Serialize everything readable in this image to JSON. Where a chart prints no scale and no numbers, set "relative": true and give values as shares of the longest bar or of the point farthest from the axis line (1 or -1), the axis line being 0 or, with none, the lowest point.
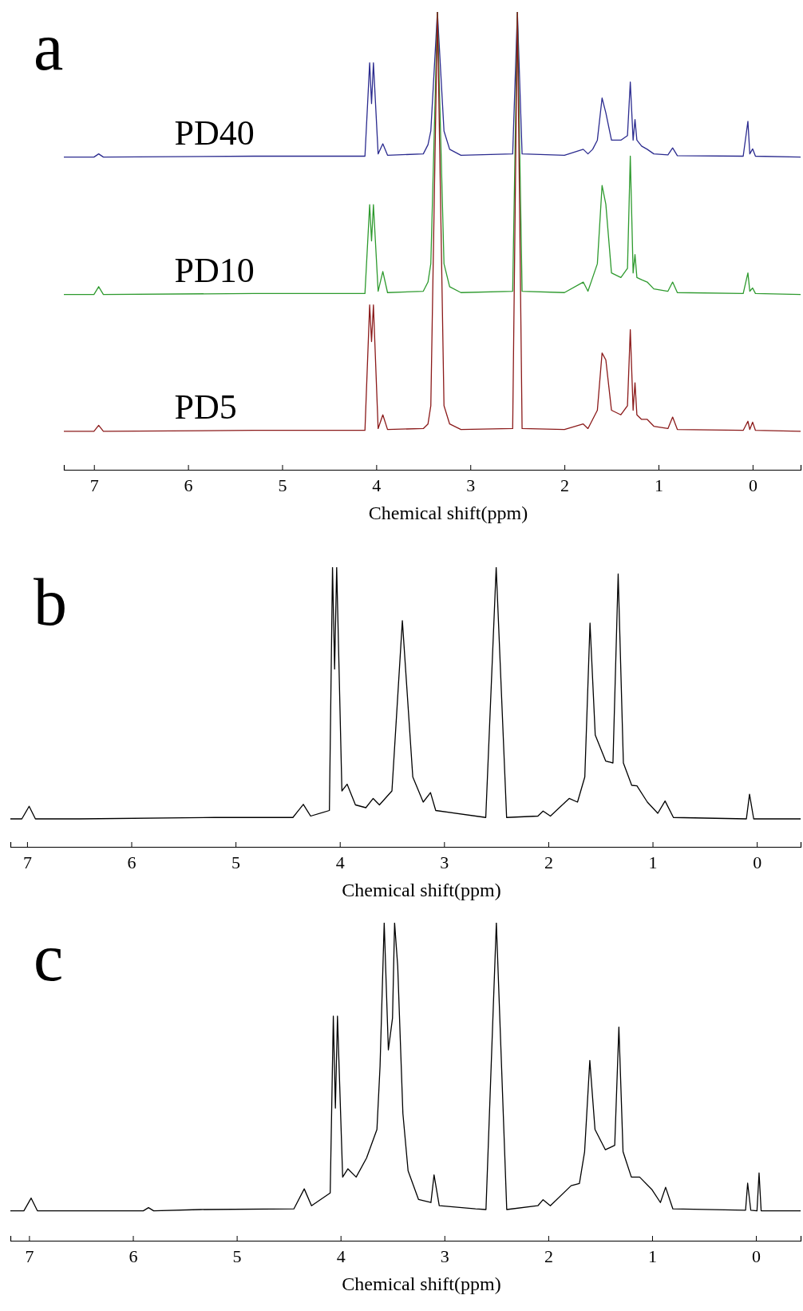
{
  "chart_data": [
    {
      "type": "line",
      "title": "a",
      "xlabel": "Chemical shift(ppm)",
      "relative": true,
      "xlim": [
        7.32,
        -0.51
      ],
      "xticks": [
        7,
        6,
        5,
        4,
        3,
        2,
        1,
        0
      ],
      "series": [
        {
          "name": "PD40",
          "color": "#2b2b8f",
          "x": [
            7.32,
            7.0,
            6.95,
            6.9,
            5.3,
            4.12,
            4.07,
            4.05,
            4.03,
            3.98,
            3.93,
            3.88,
            3.5,
            3.45,
            3.42,
            3.35,
            3.28,
            3.22,
            3.1,
            2.55,
            2.5,
            2.45,
            2.0,
            1.8,
            1.75,
            1.7,
            1.65,
            1.6,
            1.56,
            1.5,
            1.4,
            1.33,
            1.3,
            1.27,
            1.25,
            1.23,
            1.18,
            1.12,
            1.05,
            0.9,
            0.85,
            0.8,
            0.1,
            0.05,
            0.03,
            0.0,
            -0.03,
            -0.51
          ],
          "values": [
            0.683,
            0.683,
            0.69,
            0.683,
            0.685,
            0.685,
            0.889,
            0.8,
            0.889,
            0.69,
            0.712,
            0.687,
            0.69,
            0.71,
            0.74,
            1,
            0.74,
            0.7,
            0.687,
            0.69,
            1,
            0.69,
            0.687,
            0.7,
            0.69,
            0.7,
            0.72,
            0.812,
            0.78,
            0.72,
            0.72,
            0.73,
            0.847,
            0.72,
            0.765,
            0.72,
            0.707,
            0.7,
            0.69,
            0.688,
            0.703,
            0.686,
            0.685,
            0.761,
            0.69,
            0.701,
            0.685,
            0.683
          ]
        },
        {
          "name": "PD10",
          "color": "#2e9a2e",
          "x": [
            7.32,
            7.0,
            6.95,
            6.9,
            5.3,
            4.12,
            4.07,
            4.05,
            4.03,
            3.98,
            3.93,
            3.88,
            3.5,
            3.45,
            3.42,
            3.35,
            3.28,
            3.22,
            3.1,
            2.55,
            2.5,
            2.45,
            2.0,
            1.8,
            1.75,
            1.7,
            1.65,
            1.6,
            1.56,
            1.5,
            1.4,
            1.33,
            1.3,
            1.27,
            1.25,
            1.23,
            1.18,
            1.12,
            1.05,
            0.9,
            0.85,
            0.8,
            0.1,
            0.05,
            0.03,
            0.0,
            -0.03,
            -0.51
          ],
          "values": [
            0.383,
            0.383,
            0.4,
            0.383,
            0.385,
            0.385,
            0.579,
            0.5,
            0.579,
            0.39,
            0.433,
            0.387,
            0.39,
            0.41,
            0.45,
            1,
            0.45,
            0.4,
            0.387,
            0.39,
            1,
            0.39,
            0.387,
            0.41,
            0.39,
            0.42,
            0.45,
            0.621,
            0.58,
            0.43,
            0.42,
            0.44,
            0.685,
            0.43,
            0.47,
            0.42,
            0.415,
            0.41,
            0.395,
            0.39,
            0.41,
            0.387,
            0.385,
            0.43,
            0.39,
            0.397,
            0.385,
            0.383
          ]
        },
        {
          "name": "PD5",
          "color": "#8b1a1a",
          "x": [
            7.32,
            7.0,
            6.95,
            6.9,
            5.3,
            4.12,
            4.07,
            4.05,
            4.03,
            3.98,
            3.93,
            3.88,
            3.5,
            3.45,
            3.42,
            3.35,
            3.28,
            3.22,
            3.1,
            2.55,
            2.5,
            2.45,
            2.0,
            1.8,
            1.75,
            1.7,
            1.65,
            1.6,
            1.56,
            1.5,
            1.4,
            1.33,
            1.3,
            1.27,
            1.25,
            1.23,
            1.18,
            1.12,
            1.05,
            0.9,
            0.85,
            0.8,
            0.1,
            0.05,
            0.03,
            0.0,
            -0.03,
            -0.51
          ],
          "values": [
            0.084,
            0.084,
            0.097,
            0.084,
            0.086,
            0.086,
            0.36,
            0.28,
            0.36,
            0.09,
            0.12,
            0.088,
            0.09,
            0.1,
            0.14,
            1,
            0.14,
            0.1,
            0.088,
            0.09,
            1,
            0.09,
            0.088,
            0.1,
            0.09,
            0.11,
            0.13,
            0.255,
            0.24,
            0.13,
            0.12,
            0.14,
            0.306,
            0.13,
            0.19,
            0.12,
            0.11,
            0.11,
            0.095,
            0.09,
            0.115,
            0.088,
            0.086,
            0.106,
            0.088,
            0.104,
            0.086,
            0.084
          ]
        }
      ]
    },
    {
      "type": "line",
      "title": "b",
      "xlabel": "Chemical shift(ppm)",
      "relative": true,
      "xlim": [
        7.16,
        -0.42
      ],
      "xticks": [
        7,
        6,
        5,
        4,
        3,
        2,
        1,
        0
      ],
      "series": [
        {
          "color": "#000000",
          "x": [
            7.16,
            7.05,
            6.98,
            6.92,
            6.5,
            5.2,
            4.45,
            4.35,
            4.28,
            4.1,
            4.07,
            4.05,
            4.03,
            3.98,
            3.93,
            3.85,
            3.75,
            3.68,
            3.62,
            3.5,
            3.4,
            3.3,
            3.2,
            3.13,
            3.08,
            2.6,
            2.5,
            2.4,
            2.1,
            2.05,
            1.98,
            1.8,
            1.72,
            1.65,
            1.6,
            1.55,
            1.45,
            1.38,
            1.33,
            1.28,
            1.2,
            1.15,
            1.05,
            0.95,
            0.88,
            0.8,
            0.1,
            0.07,
            0.03,
            -0.42
          ],
          "values": [
            0.1,
            0.1,
            0.145,
            0.1,
            0.1,
            0.105,
            0.105,
            0.152,
            0.11,
            0.13,
            1,
            0.636,
            1,
            0.2,
            0.224,
            0.15,
            0.14,
            0.173,
            0.15,
            0.2,
            0.809,
            0.25,
            0.16,
            0.194,
            0.13,
            0.105,
            1,
            0.105,
            0.11,
            0.128,
            0.11,
            0.173,
            0.16,
            0.25,
            0.8,
            0.4,
            0.307,
            0.3,
            0.976,
            0.3,
            0.22,
            0.218,
            0.16,
            0.12,
            0.164,
            0.105,
            0.1,
            0.188,
            0.1,
            0.1
          ]
        }
      ]
    },
    {
      "type": "line",
      "title": "c",
      "xlabel": "Chemical shift(ppm)",
      "relative": true,
      "xlim": [
        7.18,
        -0.43
      ],
      "xticks": [
        7,
        6,
        5,
        4,
        3,
        2,
        1,
        0
      ],
      "series": [
        {
          "color": "#000000",
          "x": [
            7.18,
            7.05,
            6.98,
            6.92,
            5.9,
            5.85,
            5.8,
            5.35,
            4.45,
            4.35,
            4.28,
            4.1,
            4.07,
            4.05,
            4.03,
            3.98,
            3.93,
            3.85,
            3.75,
            3.65,
            3.62,
            3.58,
            3.54,
            3.5,
            3.48,
            3.45,
            3.4,
            3.35,
            3.25,
            3.13,
            3.1,
            3.05,
            2.7,
            2.6,
            2.5,
            2.4,
            2.1,
            2.05,
            1.98,
            1.78,
            1.7,
            1.65,
            1.6,
            1.55,
            1.45,
            1.36,
            1.32,
            1.28,
            1.25,
            1.2,
            1.12,
            1.0,
            0.92,
            0.87,
            0.8,
            0.1,
            0.08,
            0.05,
            -0.01,
            -0.03,
            -0.05,
            -0.43
          ],
          "values": [
            0.094,
            0.094,
            0.134,
            0.094,
            0.094,
            0.104,
            0.094,
            0.098,
            0.1,
            0.163,
            0.11,
            0.15,
            0.706,
            0.417,
            0.706,
            0.2,
            0.226,
            0.2,
            0.26,
            0.35,
            0.549,
            1,
            0.6,
            0.7,
            1,
            0.864,
            0.4,
            0.22,
            0.13,
            0.12,
            0.207,
            0.11,
            0.1,
            0.098,
            1,
            0.098,
            0.11,
            0.129,
            0.11,
            0.173,
            0.18,
            0.28,
            0.567,
            0.35,
            0.286,
            0.3,
            0.672,
            0.28,
            0.25,
            0.2,
            0.2,
            0.16,
            0.12,
            0.168,
            0.1,
            0.096,
            0.181,
            0.096,
            0.094,
            0.213,
            0.094,
            0.094
          ]
        }
      ]
    }
  ]
}
